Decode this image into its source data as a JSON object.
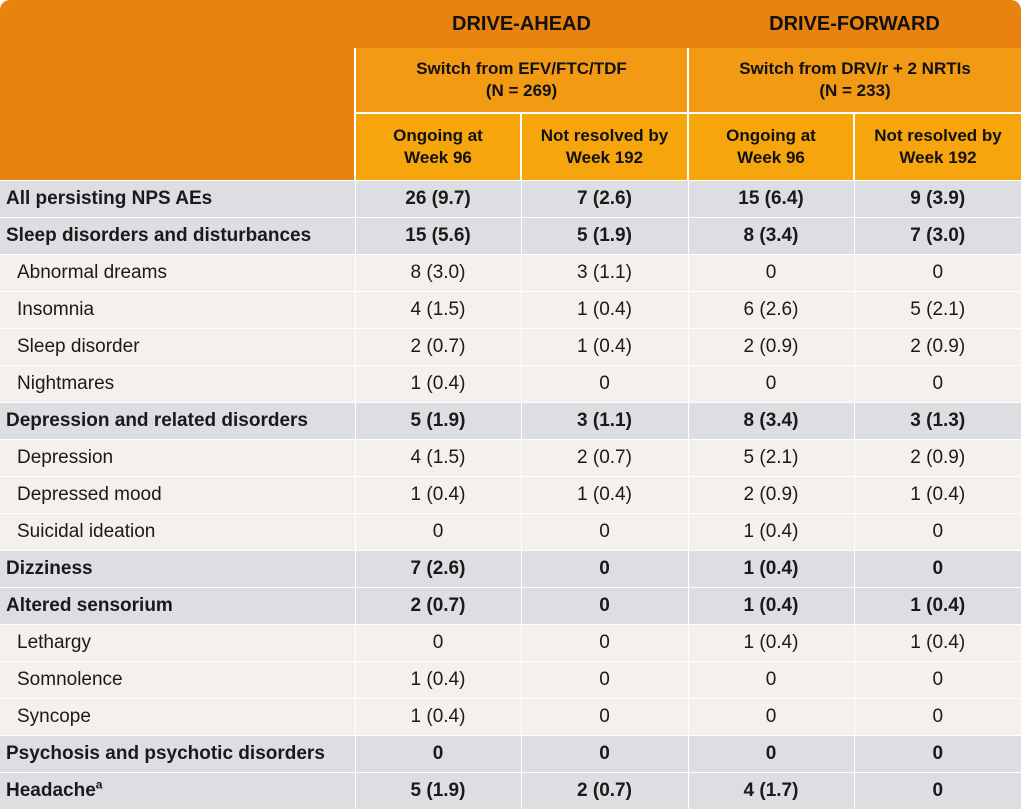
{
  "header": {
    "studies": [
      "DRIVE-AHEAD",
      "DRIVE-FORWARD"
    ],
    "populations": [
      {
        "line1": "Switch from EFV/FTC/TDF",
        "line2": "(N = 269)"
      },
      {
        "line1": "Switch from DRV/r + 2 NRTIs",
        "line2": "(N = 233)"
      }
    ],
    "columns": [
      {
        "line1": "Ongoing at",
        "line2": "Week 96"
      },
      {
        "line1": "Not resolved by",
        "line2": "Week 192"
      },
      {
        "line1": "Ongoing at",
        "line2": "Week 96"
      },
      {
        "line1": "Not resolved by",
        "line2": "Week 192"
      }
    ]
  },
  "rows": [
    {
      "label": "All persisting NPS AEs",
      "values": [
        "26 (9.7)",
        "7 (2.6)",
        "15 (6.4)",
        "9 (3.9)"
      ],
      "bold": true
    },
    {
      "label": "Sleep disorders and disturbances",
      "values": [
        "15 (5.6)",
        "5 (1.9)",
        "8 (3.4)",
        "7 (3.0)"
      ],
      "bold": true
    },
    {
      "label": "Abnormal dreams",
      "values": [
        "8 (3.0)",
        "3 (1.1)",
        "0",
        "0"
      ],
      "bold": false
    },
    {
      "label": "Insomnia",
      "values": [
        "4 (1.5)",
        "1 (0.4)",
        "6 (2.6)",
        "5 (2.1)"
      ],
      "bold": false
    },
    {
      "label": "Sleep disorder",
      "values": [
        "2 (0.7)",
        "1 (0.4)",
        "2 (0.9)",
        "2 (0.9)"
      ],
      "bold": false
    },
    {
      "label": "Nightmares",
      "values": [
        "1 (0.4)",
        "0",
        "0",
        "0"
      ],
      "bold": false
    },
    {
      "label": "Depression and related disorders",
      "values": [
        "5 (1.9)",
        "3 (1.1)",
        "8 (3.4)",
        "3 (1.3)"
      ],
      "bold": true
    },
    {
      "label": "Depression",
      "values": [
        "4 (1.5)",
        "2 (0.7)",
        "5 (2.1)",
        "2 (0.9)"
      ],
      "bold": false
    },
    {
      "label": "Depressed mood",
      "values": [
        "1 (0.4)",
        "1 (0.4)",
        "2 (0.9)",
        "1 (0.4)"
      ],
      "bold": false
    },
    {
      "label": "Suicidal ideation",
      "values": [
        "0",
        "0",
        "1 (0.4)",
        "0"
      ],
      "bold": false
    },
    {
      "label": "Dizziness",
      "values": [
        "7 (2.6)",
        "0",
        "1 (0.4)",
        "0"
      ],
      "bold": true
    },
    {
      "label": "Altered sensorium",
      "values": [
        "2 (0.7)",
        "0",
        "1 (0.4)",
        "1 (0.4)"
      ],
      "bold": true
    },
    {
      "label": "Lethargy",
      "values": [
        "0",
        "0",
        "1 (0.4)",
        "1 (0.4)"
      ],
      "bold": false
    },
    {
      "label": "Somnolence",
      "values": [
        "1 (0.4)",
        "0",
        "0",
        "0"
      ],
      "bold": false
    },
    {
      "label": "Syncope",
      "values": [
        "1 (0.4)",
        "0",
        "0",
        "0"
      ],
      "bold": false
    },
    {
      "label": "Psychosis and psychotic disorders",
      "values": [
        "0",
        "0",
        "0",
        "0"
      ],
      "bold": true
    },
    {
      "label": "Headache",
      "footnote": "a",
      "values": [
        "5 (1.9)",
        "2 (0.7)",
        "4 (1.7)",
        "0"
      ],
      "bold": true
    }
  ]
}
